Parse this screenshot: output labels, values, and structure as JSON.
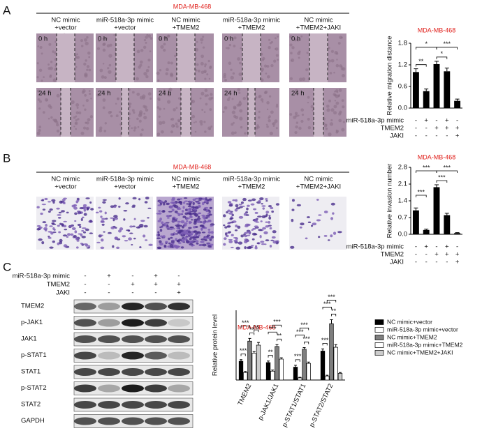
{
  "panels": {
    "a": "A",
    "b": "B",
    "c": "C"
  },
  "migration_images": {
    "title": "MDA-MB-468",
    "columns": [
      [
        "NC mimic",
        "+vector"
      ],
      [
        "miR-518a-3p mimic",
        "+vector"
      ],
      [
        "NC mimic",
        "+TMEM2"
      ],
      [
        "miR-518a-3p mimic",
        "+TMEM2"
      ],
      [
        "NC mimic",
        "+TMEM2+JAKI"
      ]
    ],
    "rows": [
      "0 h",
      "24 h"
    ]
  },
  "invasion_images": {
    "title": "MDA-MB-468",
    "columns": [
      [
        "NC mimic",
        "+vector"
      ],
      [
        "miR-518a-3p mimic",
        "+vector"
      ],
      [
        "NC mimic",
        "+TMEM2"
      ],
      [
        "miR-518a-3p mimic",
        "+TMEM2"
      ],
      [
        "NC mimic",
        "+TMEM2+JAKI"
      ]
    ]
  },
  "western_blot": {
    "conditions": [
      {
        "name": "miR-518a-3p mimic",
        "signs": [
          "-",
          "+",
          "-",
          "+",
          "-"
        ]
      },
      {
        "name": "TMEM2",
        "signs": [
          "-",
          "-",
          "+",
          "+",
          "+"
        ]
      },
      {
        "name": "JAKI",
        "signs": [
          "-",
          "-",
          "-",
          "-",
          "+"
        ]
      }
    ],
    "proteins": [
      "TMEM2",
      "p-JAK1",
      "JAK1",
      "p-STAT1",
      "STAT1",
      "p-STAT2",
      "STAT2",
      "GAPDH"
    ]
  },
  "chart_data": [
    {
      "type": "bar",
      "title": "MDA-MB-468",
      "y_label": "Relative migration distance",
      "values": [
        1.0,
        0.47,
        1.22,
        1.02,
        0.2
      ],
      "errors": [
        0.09,
        0.06,
        0.08,
        0.09,
        0.05
      ],
      "color": "#000000",
      "ylim": [
        0,
        1.8
      ],
      "yticks": [
        {
          "value": 0,
          "label": "0.0"
        },
        0.6,
        1.2,
        1.8
      ],
      "annotations": [
        "**",
        "*",
        "*",
        "***"
      ],
      "conditions": [
        {
          "name": "miR-518a-3p mimic",
          "signs": [
            "-",
            "+",
            "-",
            "+",
            "-"
          ]
        },
        {
          "name": "TMEM2",
          "signs": [
            "-",
            "-",
            "+",
            "+",
            "+"
          ]
        },
        {
          "name": "JAKI",
          "signs": [
            "-",
            "-",
            "-",
            "-",
            "+"
          ]
        }
      ]
    },
    {
      "type": "bar",
      "title": "MDA-MB-468",
      "y_label": "Relative invasion number",
      "values": [
        1.0,
        0.18,
        1.97,
        0.8,
        0.05
      ],
      "errors": [
        0.1,
        0.04,
        0.1,
        0.08,
        0.02
      ],
      "color": "#000000",
      "ylim": [
        0,
        2.8
      ],
      "yticks": [
        {
          "value": 0,
          "label": "0.0"
        },
        0.7,
        1.4,
        2.1,
        2.8
      ],
      "annotations": [
        "***",
        "***",
        "***",
        "***"
      ],
      "conditions": [
        {
          "name": "miR-518a-3p mimic",
          "signs": [
            "-",
            "+",
            "-",
            "+",
            "-"
          ]
        },
        {
          "name": "TMEM2",
          "signs": [
            "-",
            "-",
            "+",
            "+",
            "+"
          ]
        },
        {
          "name": "JAKI",
          "signs": [
            "-",
            "-",
            "-",
            "-",
            "+"
          ]
        }
      ]
    },
    {
      "type": "grouped_bar",
      "title": "MDA-MB-468",
      "y_label": "Relative protein level",
      "categories": [
        "TMEM2",
        "p-JAK1/JAK1",
        "p-STAT1/STAT1",
        "p-STAT2/STAT2"
      ],
      "ylim": [
        0,
        2.6
      ],
      "series": [
        {
          "name": "NC mimic+vector",
          "color": "#000000",
          "values": [
            0.7,
            0.65,
            0.48,
            1.08
          ],
          "errors": [
            0.06,
            0.06,
            0.07,
            0.08
          ]
        },
        {
          "name": "miR-518a-3p mimic+vector",
          "color": "#ffffff",
          "values": [
            0.28,
            0.33,
            0.08,
            0.15
          ],
          "errors": [
            0.04,
            0.04,
            0.02,
            0.03
          ]
        },
        {
          "name": "NC mimic+TMEM2",
          "color": "#7f7f7f",
          "values": [
            1.45,
            1.25,
            1.15,
            2.1
          ],
          "errors": [
            0.1,
            0.07,
            0.06,
            0.15
          ]
        },
        {
          "name": "miR-518a-3p mimic+TMEM2",
          "color": "#ffffff",
          "values": [
            1.0,
            0.78,
            0.62,
            1.22
          ],
          "errors": [
            0.06,
            0.05,
            0.05,
            0.1
          ]
        },
        {
          "name": "NC mimic+TMEM2+JAKI",
          "color": "#cccccc",
          "values": [
            1.3,
            null,
            null,
            0.25
          ],
          "errors": [
            0.1,
            null,
            null,
            0.03
          ]
        }
      ],
      "annotations": [
        [
          "***",
          "***",
          "**",
          "ns"
        ],
        [
          "**",
          "***",
          "**",
          "***"
        ],
        [
          "***",
          "***",
          "***",
          "***"
        ],
        [
          "***",
          "***",
          "**",
          "***"
        ]
      ]
    }
  ]
}
